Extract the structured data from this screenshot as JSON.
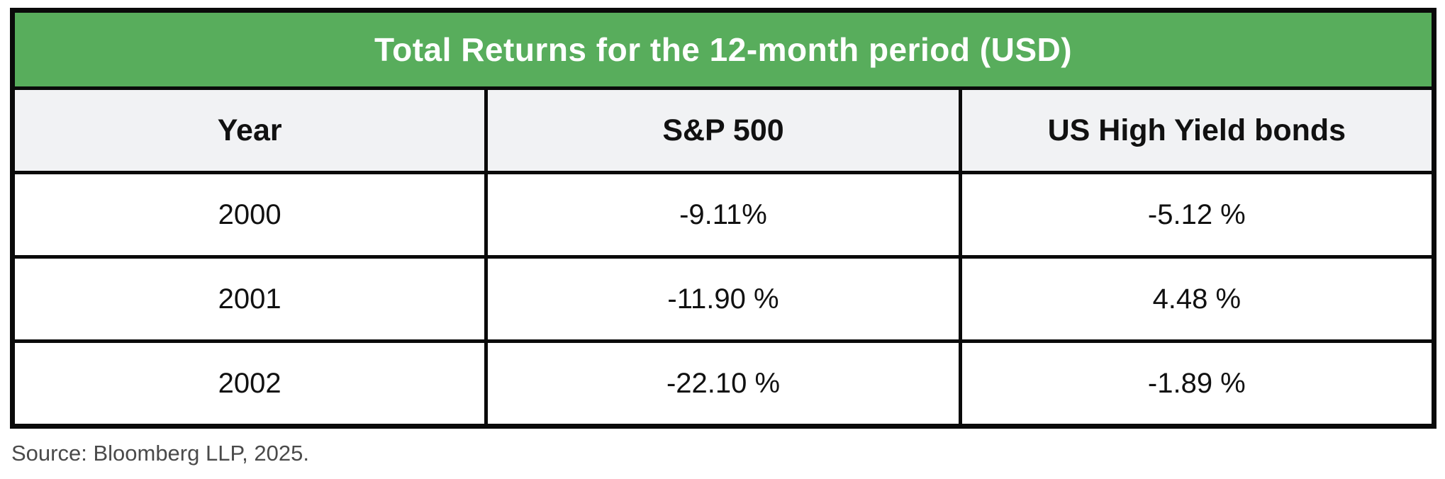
{
  "table": {
    "title": "Total Returns for the 12-month period (USD)",
    "columns": [
      "Year",
      "S&P 500",
      "US High Yield bonds"
    ],
    "rows": [
      [
        "2000",
        "-9.11%",
        "-5.12 %"
      ],
      [
        "2001",
        "-11.90 %",
        "4.48 %"
      ],
      [
        "2002",
        "-22.10 %",
        "-1.89 %"
      ]
    ]
  },
  "source": "Source: Bloomberg LLP, 2025.",
  "colors": {
    "title_bg": "#58AD5C",
    "title_text": "#FFFFFF",
    "header_row_bg": "#F1F2F4",
    "border": "#0A0A0A",
    "cell_text": "#111111",
    "source_text": "#4A4A4A"
  },
  "chart_data": {
    "type": "table",
    "title": "Total Returns for the 12-month period (USD)",
    "categories": [
      "2000",
      "2001",
      "2002"
    ],
    "series": [
      {
        "name": "S&P 500",
        "values": [
          -9.11,
          -11.9,
          -22.1
        ],
        "unit": "%"
      },
      {
        "name": "US High Yield bonds",
        "values": [
          -5.12,
          4.48,
          -1.89
        ],
        "unit": "%"
      }
    ],
    "columns": [
      "Year",
      "S&P 500",
      "US High Yield bonds"
    ],
    "rows": [
      [
        "2000",
        "-9.11%",
        "-5.12 %"
      ],
      [
        "2001",
        "-11.90 %",
        "4.48 %"
      ],
      [
        "2002",
        "-22.10 %",
        "-1.89 %"
      ]
    ],
    "source": "Source: Bloomberg LLP, 2025."
  }
}
